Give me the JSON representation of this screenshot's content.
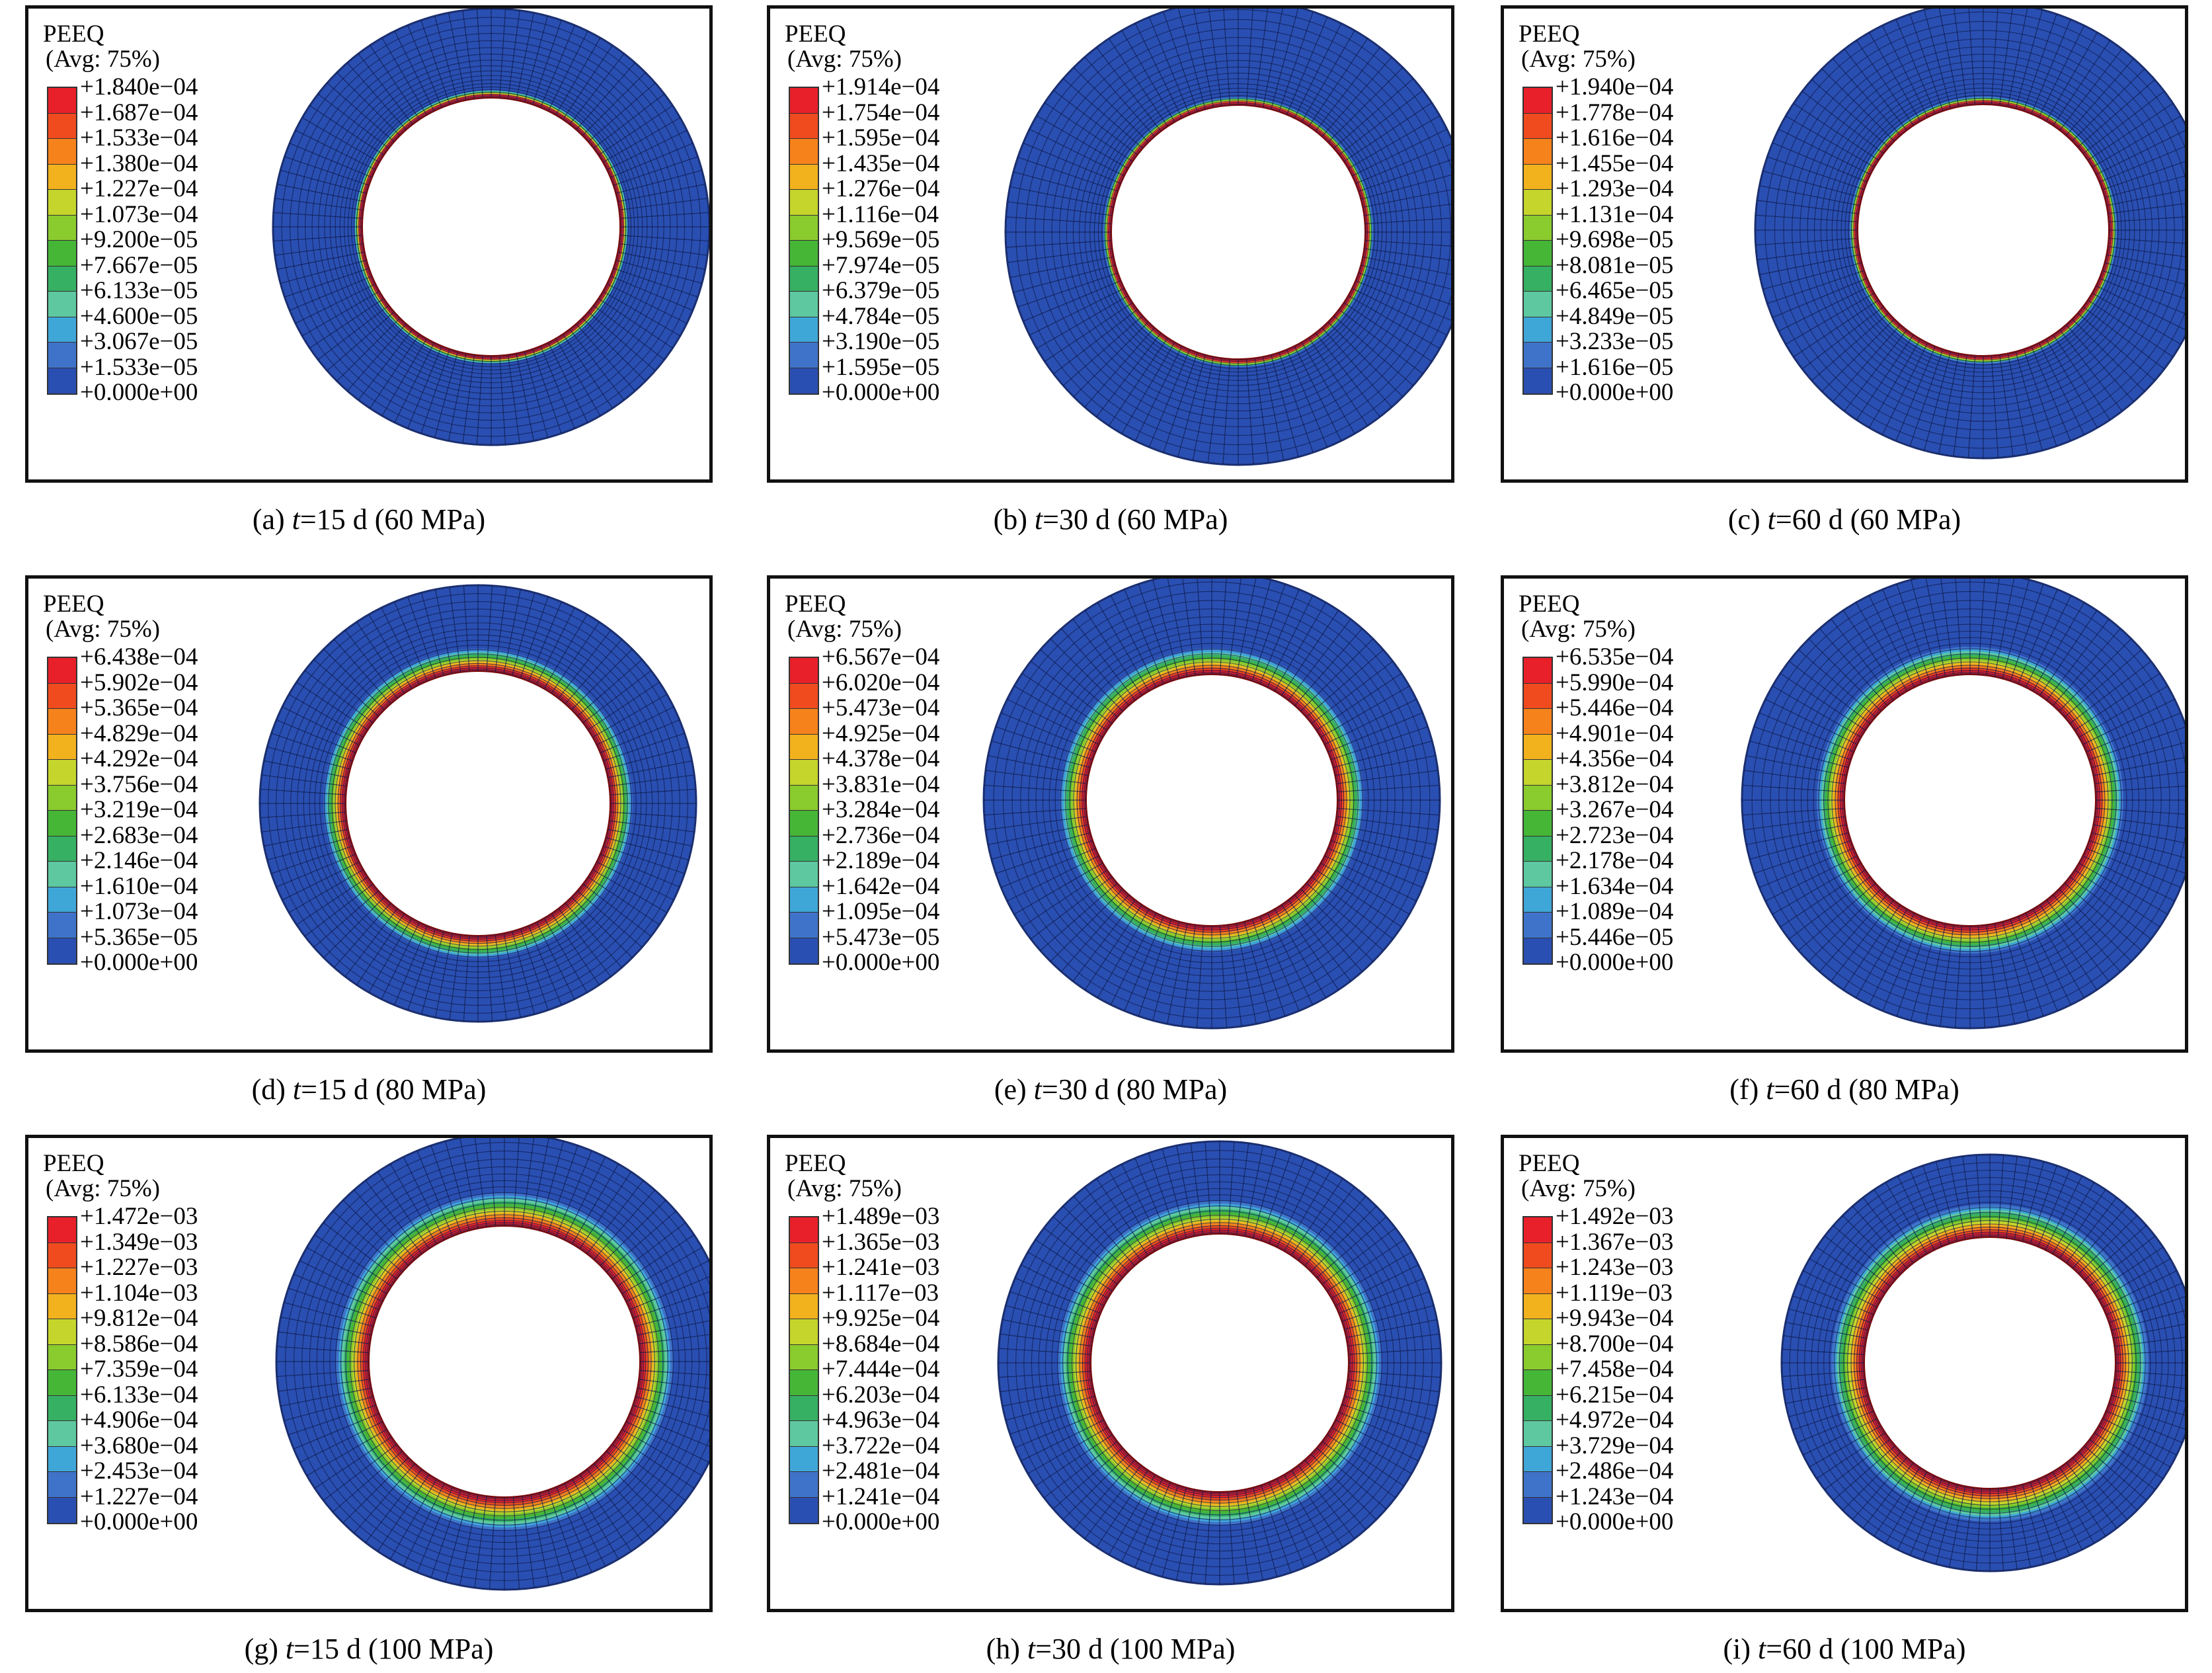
{
  "legend_title": "PEEQ",
  "legend_subtitle": "(Avg: 75%)",
  "colors": [
    "#e8202a",
    "#ef4b1f",
    "#f6821c",
    "#f2b21d",
    "#c5d52b",
    "#8acb2d",
    "#46b637",
    "#36b063",
    "#5ec8a0",
    "#3fa6d8",
    "#3f73c9",
    "#2a4fb2"
  ],
  "colors_note_order": "top to bottom of the color bar",
  "panels": [
    {
      "label": "(a)",
      "time": "t",
      "time_value": "=15 d",
      "pressure": "(60 MPa)",
      "legend": [
        "+1.840e−04",
        "+1.687e−04",
        "+1.533e−04",
        "+1.380e−04",
        "+1.227e−04",
        "+1.073e−04",
        "+9.200e−05",
        "+7.667e−05",
        "+6.133e−05",
        "+4.600e−05",
        "+3.067e−05",
        "+1.533e−05",
        "+0.000e+00"
      ]
    },
    {
      "label": "(b)",
      "time": "t",
      "time_value": "=30 d",
      "pressure": "(60 MPa)",
      "legend": [
        "+1.914e−04",
        "+1.754e−04",
        "+1.595e−04",
        "+1.435e−04",
        "+1.276e−04",
        "+1.116e−04",
        "+9.569e−05",
        "+7.974e−05",
        "+6.379e−05",
        "+4.784e−05",
        "+3.190e−05",
        "+1.595e−05",
        "+0.000e+00"
      ]
    },
    {
      "label": "(c)",
      "time": "t",
      "time_value": "=60 d",
      "pressure": "(60 MPa)",
      "legend": [
        "+1.940e−04",
        "+1.778e−04",
        "+1.616e−04",
        "+1.455e−04",
        "+1.293e−04",
        "+1.131e−04",
        "+9.698e−05",
        "+8.081e−05",
        "+6.465e−05",
        "+4.849e−05",
        "+3.233e−05",
        "+1.616e−05",
        "+0.000e+00"
      ]
    },
    {
      "label": "(d)",
      "time": "t",
      "time_value": "=15 d",
      "pressure": "(80 MPa)",
      "legend": [
        "+6.438e−04",
        "+5.902e−04",
        "+5.365e−04",
        "+4.829e−04",
        "+4.292e−04",
        "+3.756e−04",
        "+3.219e−04",
        "+2.683e−04",
        "+2.146e−04",
        "+1.610e−04",
        "+1.073e−04",
        "+5.365e−05",
        "+0.000e+00"
      ]
    },
    {
      "label": "(e)",
      "time": "t",
      "time_value": "=30 d",
      "pressure": "(80 MPa)",
      "legend": [
        "+6.567e−04",
        "+6.020e−04",
        "+5.473e−04",
        "+4.925e−04",
        "+4.378e−04",
        "+3.831e−04",
        "+3.284e−04",
        "+2.736e−04",
        "+2.189e−04",
        "+1.642e−04",
        "+1.095e−04",
        "+5.473e−05",
        "+0.000e+00"
      ]
    },
    {
      "label": "(f)",
      "time": "t",
      "time_value": "=60 d",
      "pressure": "(80 MPa)",
      "legend": [
        "+6.535e−04",
        "+5.990e−04",
        "+5.446e−04",
        "+4.901e−04",
        "+4.356e−04",
        "+3.812e−04",
        "+3.267e−04",
        "+2.723e−04",
        "+2.178e−04",
        "+1.634e−04",
        "+1.089e−04",
        "+5.446e−05",
        "+0.000e+00"
      ]
    },
    {
      "label": "(g)",
      "time": "t",
      "time_value": "=15 d",
      "pressure": "(100 MPa)",
      "legend": [
        "+1.472e−03",
        "+1.349e−03",
        "+1.227e−03",
        "+1.104e−03",
        "+9.812e−04",
        "+8.586e−04",
        "+7.359e−04",
        "+6.133e−04",
        "+4.906e−04",
        "+3.680e−04",
        "+2.453e−04",
        "+1.227e−04",
        "+0.000e+00"
      ]
    },
    {
      "label": "(h)",
      "time": "t",
      "time_value": "=30 d",
      "pressure": "(100 MPa)",
      "legend": [
        "+1.489e−03",
        "+1.365e−03",
        "+1.241e−03",
        "+1.117e−03",
        "+9.925e−04",
        "+8.684e−04",
        "+7.444e−04",
        "+6.203e−04",
        "+4.963e−04",
        "+3.722e−04",
        "+2.481e−04",
        "+1.241e−04",
        "+0.000e+00"
      ]
    },
    {
      "label": "(i)",
      "time": "t",
      "time_value": "=60 d",
      "pressure": "(100 MPa)",
      "legend": [
        "+1.492e−03",
        "+1.367e−03",
        "+1.243e−03",
        "+1.119e−03",
        "+9.943e−04",
        "+8.700e−04",
        "+7.458e−04",
        "+6.215e−04",
        "+4.972e−04",
        "+3.729e−04",
        "+2.486e−04",
        "+1.243e−04",
        "+0.000e+00"
      ]
    }
  ]
}
